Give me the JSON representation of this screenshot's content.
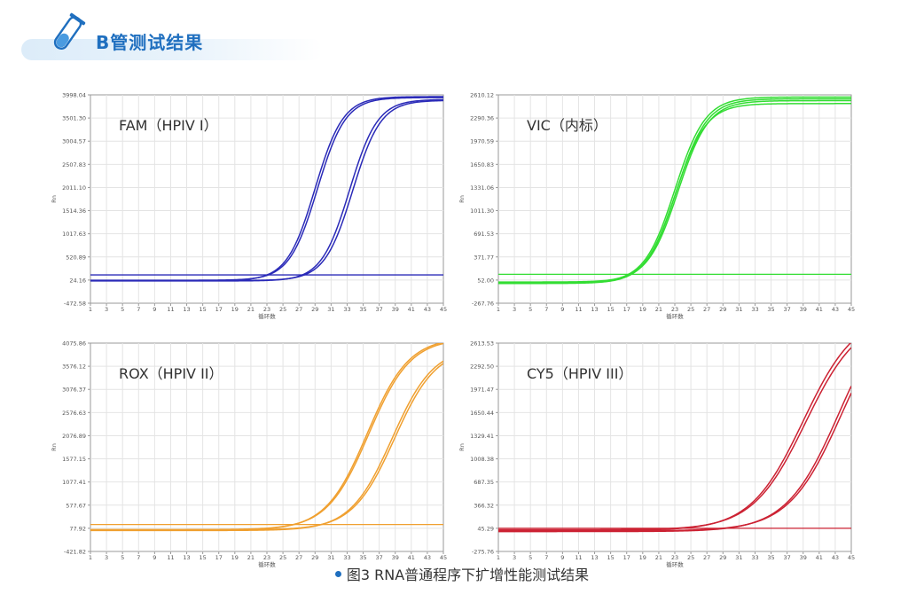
{
  "header": {
    "title": "B管测试结果"
  },
  "caption": "图3 RNA普通程序下扩增性能测试结果",
  "colors": {
    "accent": "#1f6fbf"
  },
  "chart_data": [
    {
      "type": "line",
      "title": "FAM（HPIV I）",
      "color": "#2a2ab8",
      "xlabel": "循环数",
      "ylabel": "Rn",
      "xlim": [
        1,
        45
      ],
      "ylim": [
        -472.58,
        3998.04
      ],
      "x_ticks": [
        1,
        3,
        5,
        7,
        9,
        11,
        13,
        15,
        17,
        19,
        21,
        23,
        25,
        27,
        29,
        31,
        33,
        35,
        37,
        39,
        41,
        43,
        45
      ],
      "y_ticks": [
        "3998.04",
        "3501.30",
        "3004.57",
        "2507.83",
        "2011.10",
        "1514.36",
        "1017.63",
        "520.89",
        "24.16",
        "-472.58"
      ],
      "threshold": 135,
      "grid": true,
      "series": [
        {
          "baseline": 10,
          "plateau": 3960,
          "midpoint": 29.0,
          "slope": 1.75
        },
        {
          "baseline": 20,
          "plateau": 3940,
          "midpoint": 29.3,
          "slope": 1.75
        },
        {
          "baseline": 5,
          "plateau": 3900,
          "midpoint": 33.3,
          "slope": 1.75
        },
        {
          "baseline": 15,
          "plateau": 3880,
          "midpoint": 33.7,
          "slope": 1.75
        }
      ]
    },
    {
      "type": "line",
      "title": "VIC（内标）",
      "color": "#33dd33",
      "xlabel": "循环数",
      "ylabel": "Rn",
      "xlim": [
        1,
        45
      ],
      "ylim": [
        -267.76,
        2610.12
      ],
      "x_ticks": [
        1,
        3,
        5,
        7,
        9,
        11,
        13,
        15,
        17,
        19,
        21,
        23,
        25,
        27,
        29,
        31,
        33,
        35,
        37,
        39,
        41,
        43,
        45
      ],
      "y_ticks": [
        "2610.12",
        "2290.36",
        "1970.59",
        "1650.83",
        "1331.06",
        "1011.30",
        "691.53",
        "371.77",
        "52.00",
        "-267.76"
      ],
      "threshold": 132,
      "grid": true,
      "series": [
        {
          "baseline": 15,
          "plateau": 2580,
          "midpoint": 23.0,
          "slope": 1.9
        },
        {
          "baseline": 5,
          "plateau": 2555,
          "midpoint": 23.2,
          "slope": 1.9
        },
        {
          "baseline": 25,
          "plateau": 2530,
          "midpoint": 23.4,
          "slope": 1.9
        },
        {
          "baseline": 10,
          "plateau": 2490,
          "midpoint": 23.1,
          "slope": 1.9
        }
      ]
    },
    {
      "type": "line",
      "title": "ROX（HPIV II）",
      "color": "#f0a030",
      "xlabel": "循环数",
      "ylabel": "Rn",
      "xlim": [
        1,
        45
      ],
      "ylim": [
        -421.82,
        4075.86
      ],
      "x_ticks": [
        1,
        3,
        5,
        7,
        9,
        11,
        13,
        15,
        17,
        19,
        21,
        23,
        25,
        27,
        29,
        31,
        33,
        35,
        37,
        39,
        41,
        43,
        45
      ],
      "y_ticks": [
        "4075.86",
        "3576.12",
        "3076.37",
        "2576.63",
        "2076.89",
        "1577.15",
        "1077.41",
        "577.67",
        "77.92",
        "-421.82"
      ],
      "threshold": 160,
      "grid": true,
      "series": [
        {
          "baseline": 40,
          "plateau": 4200,
          "midpoint": 35.5,
          "slope": 2.6
        },
        {
          "baseline": 50,
          "plateau": 4180,
          "midpoint": 35.7,
          "slope": 2.6
        },
        {
          "baseline": 30,
          "plateau": 4000,
          "midpoint": 38.6,
          "slope": 2.6
        },
        {
          "baseline": 45,
          "plateau": 3980,
          "midpoint": 38.9,
          "slope": 2.6
        }
      ]
    },
    {
      "type": "line",
      "title": "CY5（HPIV III）",
      "color": "#cc2233",
      "xlabel": "循环数",
      "ylabel": "Rn",
      "xlim": [
        1,
        45
      ],
      "ylim": [
        -275.76,
        2613.53
      ],
      "x_ticks": [
        1,
        3,
        5,
        7,
        9,
        11,
        13,
        15,
        17,
        19,
        21,
        23,
        25,
        27,
        29,
        31,
        33,
        35,
        37,
        39,
        41,
        43,
        45
      ],
      "y_ticks": [
        "2613.53",
        "2292.50",
        "1971.47",
        "1650.44",
        "1329.41",
        "1008.38",
        "687.35",
        "366.32",
        "45.29",
        "-275.76"
      ],
      "threshold": 45,
      "grid": true,
      "series": [
        {
          "baseline": 15,
          "plateau": 3050,
          "midpoint": 39.0,
          "slope": 3.3
        },
        {
          "baseline": 25,
          "plateau": 3000,
          "midpoint": 39.3,
          "slope": 3.3
        },
        {
          "baseline": 0,
          "plateau": 3300,
          "midpoint": 43.5,
          "slope": 3.3
        },
        {
          "baseline": 10,
          "plateau": 3250,
          "midpoint": 43.8,
          "slope": 3.3
        }
      ]
    }
  ]
}
